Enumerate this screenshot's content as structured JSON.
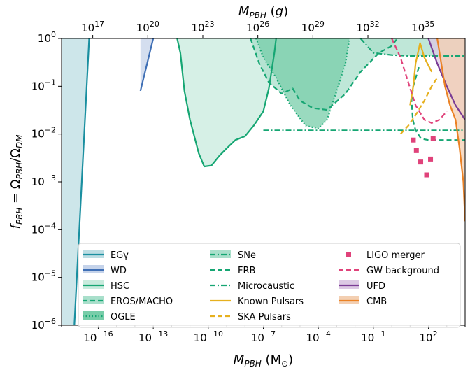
{
  "chart_data": {
    "type": "line",
    "x_scale": "log",
    "y_scale": "log",
    "xlabel": "M_PBH (M_⊙)",
    "ylabel": "f_PBH = Ω_PBH/Ω_DM",
    "top_xlabel": "M_PBH (g)",
    "xlim": [
      1e-18,
      10000.0
    ],
    "ylim": [
      1e-06,
      1
    ],
    "x_ticks": [
      {
        "value": 1e-16,
        "base": "10",
        "exp": "−16"
      },
      {
        "value": 1e-13,
        "base": "10",
        "exp": "−13"
      },
      {
        "value": 1e-10,
        "base": "10",
        "exp": "−10"
      },
      {
        "value": 1e-07,
        "base": "10",
        "exp": "−7"
      },
      {
        "value": 0.0001,
        "base": "10",
        "exp": "−4"
      },
      {
        "value": 0.1,
        "base": "10",
        "exp": "−1"
      },
      {
        "value": 100.0,
        "base": "10",
        "exp": "2"
      }
    ],
    "y_ticks": [
      {
        "value": 1,
        "base": "10",
        "exp": "0"
      },
      {
        "value": 0.1,
        "base": "10",
        "exp": "−1"
      },
      {
        "value": 0.01,
        "base": "10",
        "exp": "−2"
      },
      {
        "value": 0.001,
        "base": "10",
        "exp": "−3"
      },
      {
        "value": 0.0001,
        "base": "10",
        "exp": "−4"
      },
      {
        "value": 1e-05,
        "base": "10",
        "exp": "−5"
      },
      {
        "value": 1e-06,
        "base": "10",
        "exp": "−6"
      }
    ],
    "top_ticks": [
      {
        "value": 1e+17,
        "base": "10",
        "exp": "17"
      },
      {
        "value": 1e+20,
        "base": "10",
        "exp": "20"
      },
      {
        "value": 1e+23,
        "base": "10",
        "exp": "23"
      },
      {
        "value": 1e+26,
        "base": "10",
        "exp": "26"
      },
      {
        "value": 1e+29,
        "base": "10",
        "exp": "29"
      },
      {
        "value": 1e+32,
        "base": "10",
        "exp": "32"
      },
      {
        "value": 1e+35,
        "base": "10",
        "exp": "35"
      }
    ],
    "grams_per_solar_mass": 1.989e+33,
    "legend_position": "lower center, three columns",
    "series": [
      {
        "name": "EGγ",
        "style": "solid",
        "color": "#1a8fa0",
        "fill": "#bcdde3",
        "points": [
          [
            5e-18,
            1e-06
          ],
          [
            3.2e-17,
            1
          ]
        ]
      },
      {
        "name": "WD",
        "style": "solid",
        "color": "#3f6fb5",
        "fill": "#c5d3ea",
        "points": [
          [
            2e-14,
            0.08
          ],
          [
            1e-13,
            1
          ]
        ]
      },
      {
        "name": "HSC",
        "style": "solid",
        "color": "#16a673",
        "fill": "#c8ebdd",
        "points": [
          [
            2e-12,
            1
          ],
          [
            3e-12,
            0.5
          ],
          [
            5e-12,
            0.08
          ],
          [
            1e-11,
            0.02
          ],
          [
            3e-11,
            0.004
          ],
          [
            6e-11,
            0.0021
          ],
          [
            1.5e-10,
            0.0022
          ],
          [
            4e-10,
            0.0035
          ],
          [
            1e-09,
            0.005
          ],
          [
            3e-09,
            0.0075
          ],
          [
            1e-08,
            0.009
          ],
          [
            3e-08,
            0.015
          ],
          [
            1e-07,
            0.03
          ],
          [
            2e-07,
            0.09
          ],
          [
            4e-07,
            0.5
          ],
          [
            5e-07,
            1
          ]
        ]
      },
      {
        "name": "EROS/MACHO",
        "style": "dashed",
        "color": "#16a673",
        "fill": "#a9dfcb",
        "points": [
          [
            2e-08,
            1
          ],
          [
            6e-08,
            0.3
          ],
          [
            2e-07,
            0.12
          ],
          [
            1e-06,
            0.07
          ],
          [
            4e-06,
            0.09
          ],
          [
            1e-05,
            0.05
          ],
          [
            5e-05,
            0.035
          ],
          [
            0.0003,
            0.032
          ],
          [
            0.003,
            0.07
          ],
          [
            0.02,
            0.2
          ],
          [
            0.2,
            0.5
          ],
          [
            1,
            0.7
          ],
          [
            2,
            1
          ]
        ]
      },
      {
        "name": "OGLE",
        "style": "dotted",
        "color": "#16a673",
        "fill": "#78cda9",
        "points": [
          [
            4e-08,
            1
          ],
          [
            1e-07,
            0.4
          ],
          [
            5e-07,
            0.15
          ],
          [
            3e-06,
            0.04
          ],
          [
            2e-05,
            0.015
          ],
          [
            0.0001,
            0.013
          ],
          [
            0.0003,
            0.02
          ],
          [
            0.001,
            0.08
          ],
          [
            0.003,
            0.3
          ],
          [
            0.005,
            1
          ]
        ]
      },
      {
        "name": "SNe",
        "style": "dashdot",
        "color": "#16a673",
        "fill": "#a9dfcb",
        "points": [
          [
            0.02,
            1
          ],
          [
            0.1,
            0.5
          ],
          [
            1,
            0.45
          ],
          [
            10,
            0.43
          ],
          [
            100,
            0.43
          ],
          [
            10000.0,
            0.43
          ]
        ]
      },
      {
        "name": "FRB",
        "style": "dashed",
        "color": "#16a673",
        "points": [
          [
            30,
            0.25
          ],
          [
            15,
            0.1
          ],
          [
            12,
            0.05
          ],
          [
            14,
            0.02
          ],
          [
            20,
            0.012
          ],
          [
            40,
            0.008
          ],
          [
            100,
            0.0075
          ],
          [
            1000.0,
            0.0075
          ],
          [
            10000.0,
            0.0075
          ]
        ]
      },
      {
        "name": "Microcaustic",
        "style": "dashdot",
        "color": "#16a673",
        "points": [
          [
            1e-07,
            0.012
          ],
          [
            10000.0,
            0.012
          ]
        ]
      },
      {
        "name": "Known Pulsars",
        "style": "solid",
        "color": "#e6b01e",
        "points": [
          [
            10,
            0.04
          ],
          [
            15,
            0.1
          ],
          [
            20,
            0.3
          ],
          [
            35,
            0.8
          ],
          [
            60,
            0.4
          ],
          [
            150,
            0.2
          ]
        ]
      },
      {
        "name": "SKA Pulsars",
        "style": "dashed",
        "color": "#e6b01e",
        "points": [
          [
            3,
            0.01
          ],
          [
            8,
            0.015
          ],
          [
            20,
            0.025
          ],
          [
            60,
            0.05
          ],
          [
            150,
            0.1
          ],
          [
            300,
            0.15
          ]
        ]
      },
      {
        "name": "LIGO merger",
        "style": "markers",
        "color": "#e0427a",
        "points": [
          [
            15,
            0.0075
          ],
          [
            22,
            0.0045
          ],
          [
            38,
            0.0026
          ],
          [
            80,
            0.0014
          ],
          [
            130,
            0.003
          ],
          [
            180,
            0.008
          ]
        ]
      },
      {
        "name": "GW background",
        "style": "dashed",
        "color": "#e0427a",
        "points": [
          [
            1,
            1
          ],
          [
            3,
            0.4
          ],
          [
            8,
            0.12
          ],
          [
            20,
            0.04
          ],
          [
            60,
            0.02
          ],
          [
            150,
            0.017
          ],
          [
            400,
            0.02
          ],
          [
            1000,
            0.03
          ]
        ]
      },
      {
        "name": "UFD",
        "style": "solid",
        "color": "#7a3c95",
        "fill": "#dcc9e4",
        "points": [
          [
            100,
            1
          ],
          [
            300,
            0.3
          ],
          [
            1000,
            0.1
          ],
          [
            3000,
            0.04
          ],
          [
            10000.0,
            0.02
          ]
        ]
      },
      {
        "name": "CMB",
        "style": "solid",
        "color": "#eb8225",
        "fill": "#f3cfb2",
        "points": [
          [
            300,
            1
          ],
          [
            500,
            0.3
          ],
          [
            800,
            0.1
          ],
          [
            1500,
            0.04
          ],
          [
            3000,
            0.02
          ],
          [
            5000,
            0.005
          ],
          [
            8000,
            0.001
          ],
          [
            10000.0,
            0.00015
          ]
        ]
      }
    ]
  }
}
